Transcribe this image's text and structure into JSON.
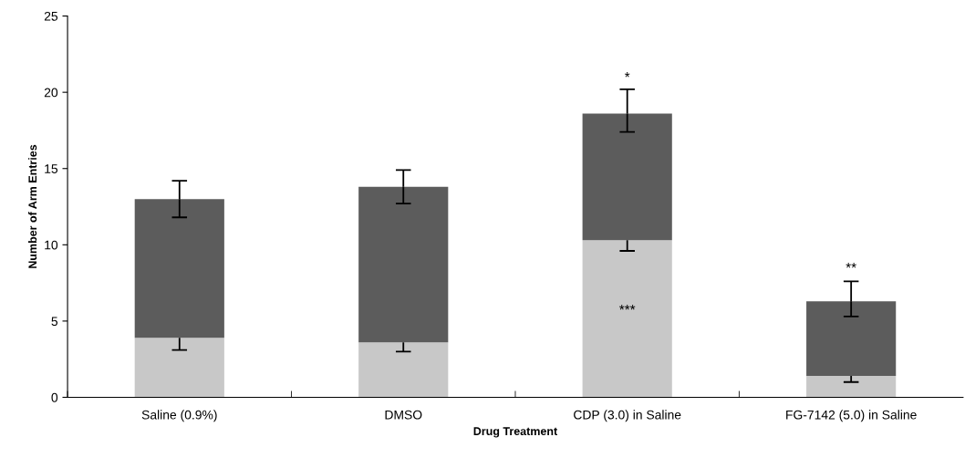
{
  "chart_data": {
    "type": "bar",
    "stacked": true,
    "xlabel": "Drug Treatment",
    "ylabel": "Number of Arm Entries",
    "categories": [
      "Saline (0.9%)",
      "DMSO",
      "CDP (3.0) in Saline",
      "FG-7142 (5.0) in Saline"
    ],
    "series": [
      {
        "color": "#c8c8c8",
        "values": [
          3.9,
          3.6,
          10.3,
          1.4
        ],
        "errors": [
          [
            3.1,
            3.9
          ],
          [
            3.0,
            3.6
          ],
          [
            9.6,
            10.3
          ],
          [
            1.0,
            1.4
          ]
        ]
      },
      {
        "color": "#5c5c5c",
        "values": [
          9.1,
          10.2,
          8.3,
          4.9
        ],
        "errors": [
          [
            11.8,
            14.2
          ],
          [
            12.7,
            14.9
          ],
          [
            17.4,
            20.2
          ],
          [
            5.3,
            7.6
          ]
        ]
      }
    ],
    "ylim": [
      0,
      25
    ],
    "yticks": [
      0,
      5,
      10,
      15,
      20,
      25
    ],
    "grid": false,
    "legend": false,
    "annotations": [
      "*",
      "***",
      "**"
    ]
  }
}
